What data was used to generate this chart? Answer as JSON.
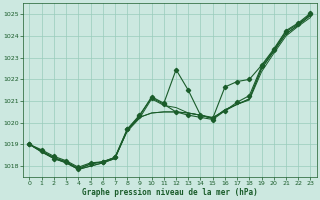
{
  "title": "Graphe pression niveau de la mer (hPa)",
  "bg_color": "#cce8e0",
  "line_color": "#1a5c2a",
  "grid_color": "#99ccbb",
  "xlim": [
    -0.5,
    23.5
  ],
  "ylim": [
    1017.5,
    1025.5
  ],
  "yticks": [
    1018,
    1019,
    1020,
    1021,
    1022,
    1023,
    1024,
    1025
  ],
  "xticks": [
    0,
    1,
    2,
    3,
    4,
    5,
    6,
    7,
    8,
    9,
    10,
    11,
    12,
    13,
    14,
    15,
    16,
    17,
    18,
    19,
    20,
    21,
    22,
    23
  ],
  "line1": [
    1019.0,
    1018.7,
    1018.4,
    1018.2,
    1017.9,
    1018.1,
    1018.2,
    1018.4,
    1019.6,
    1020.2,
    1021.1,
    1020.8,
    1020.7,
    1020.45,
    1020.35,
    1020.25,
    1020.55,
    1020.85,
    1021.05,
    1022.35,
    1023.2,
    1024.0,
    1024.45,
    1024.85
  ],
  "line2": [
    1019.0,
    1018.65,
    1018.35,
    1018.15,
    1017.85,
    1018.0,
    1018.15,
    1018.35,
    1019.65,
    1020.25,
    1020.45,
    1020.5,
    1020.5,
    1020.45,
    1020.35,
    1020.2,
    1020.6,
    1020.85,
    1021.1,
    1022.5,
    1023.3,
    1024.1,
    1024.5,
    1024.95
  ],
  "line3": [
    1019.0,
    1018.65,
    1018.35,
    1018.15,
    1017.85,
    1018.0,
    1018.15,
    1018.35,
    1019.65,
    1020.25,
    1020.45,
    1020.5,
    1020.5,
    1020.45,
    1020.35,
    1020.2,
    1020.6,
    1020.85,
    1021.1,
    1022.5,
    1023.3,
    1024.1,
    1024.5,
    1024.95
  ],
  "line_wavy": [
    1019.0,
    1018.7,
    1018.35,
    1018.2,
    1017.85,
    1018.1,
    1018.2,
    1018.4,
    1019.7,
    1020.35,
    1021.15,
    1020.85,
    1020.5,
    1020.35,
    1020.25,
    1020.15,
    1020.55,
    1020.95,
    1021.25,
    1022.6,
    1023.35,
    1024.2,
    1024.55,
    1025.0
  ],
  "line_upper": [
    1019.0,
    1018.75,
    1018.45,
    1018.25,
    1017.95,
    1018.15,
    1018.2,
    1018.4,
    1019.7,
    1020.3,
    1021.2,
    1020.9,
    1022.45,
    1021.5,
    1020.35,
    1020.2,
    1021.65,
    1021.9,
    1022.0,
    1022.65,
    1023.4,
    1024.25,
    1024.6,
    1025.05
  ]
}
